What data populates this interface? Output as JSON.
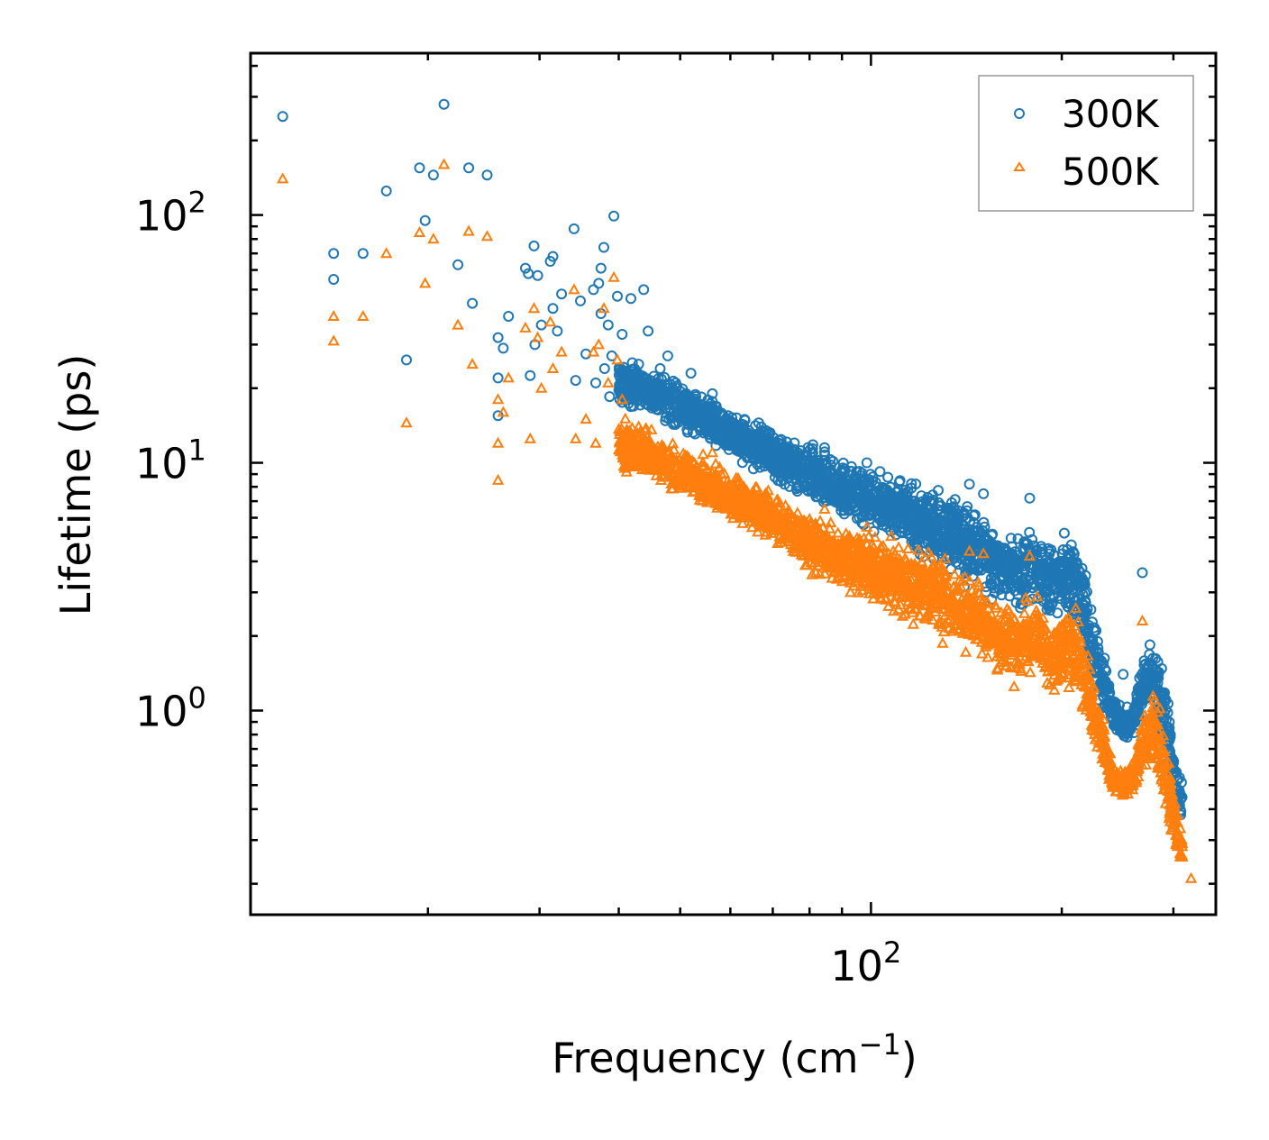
{
  "chart_data": {
    "type": "scatter",
    "xscale": "log",
    "yscale": "log",
    "xlim": [
      10.5,
      350
    ],
    "ylim": [
      0.15,
      450
    ],
    "xlabel": "Frequency (cm",
    "xlabel_exp": "−1",
    "xlabel_close": ")",
    "ylabel": "Lifetime (ps)",
    "x_ticks": [
      {
        "value": 100,
        "base": "10",
        "exp": "2"
      }
    ],
    "y_ticks": [
      {
        "value": 1,
        "base": "10",
        "exp": "0"
      },
      {
        "value": 10,
        "base": "10",
        "exp": "1"
      },
      {
        "value": 100,
        "base": "10",
        "exp": "2"
      }
    ],
    "legend": {
      "location": "upper right",
      "entries": [
        "300K",
        "500K"
      ]
    },
    "series": [
      {
        "name": "300K",
        "marker": "circle",
        "color": "#1f77b4",
        "points": [
          [
            11.8,
            250
          ],
          [
            14.2,
            70
          ],
          [
            14.2,
            55
          ],
          [
            15.8,
            70
          ],
          [
            17.2,
            125
          ],
          [
            18.5,
            26
          ],
          [
            19.4,
            155
          ],
          [
            19.8,
            95
          ],
          [
            20.4,
            145
          ],
          [
            21.2,
            280
          ],
          [
            22.3,
            63
          ],
          [
            23.2,
            155
          ],
          [
            23.5,
            44
          ],
          [
            24.8,
            145
          ],
          [
            25.8,
            32
          ],
          [
            25.8,
            22
          ],
          [
            25.8,
            15.5
          ],
          [
            26.3,
            29
          ],
          [
            26.8,
            39
          ],
          [
            28.5,
            61
          ],
          [
            28.8,
            58
          ],
          [
            29.0,
            22.5
          ],
          [
            29.4,
            75
          ],
          [
            29.5,
            30
          ],
          [
            29.8,
            57
          ],
          [
            30.2,
            36
          ],
          [
            31.2,
            65
          ],
          [
            31.5,
            68
          ],
          [
            31.5,
            42
          ],
          [
            32.0,
            34
          ],
          [
            32.5,
            48
          ],
          [
            34.0,
            88
          ],
          [
            34.2,
            21.5
          ],
          [
            34.8,
            45
          ],
          [
            35.5,
            27.5
          ],
          [
            36.5,
            50
          ],
          [
            36.8,
            21
          ],
          [
            37.2,
            53
          ],
          [
            37.5,
            61
          ],
          [
            37.5,
            40
          ],
          [
            37.9,
            74
          ],
          [
            38.0,
            24
          ],
          [
            38.5,
            36
          ],
          [
            38.7,
            18.5
          ],
          [
            39.0,
            27
          ],
          [
            39.3,
            99
          ],
          [
            39.8,
            47
          ],
          [
            40.5,
            33
          ],
          [
            41.8,
            46
          ],
          [
            43.8,
            50
          ],
          [
            42.5,
            20
          ],
          [
            43.0,
            25
          ],
          [
            44.5,
            34
          ],
          [
            45.2,
            18
          ],
          [
            46.5,
            24
          ],
          [
            47.8,
            27
          ],
          [
            49.2,
            21
          ],
          [
            50.5,
            16
          ],
          [
            52.0,
            23
          ],
          [
            54.0,
            17
          ],
          [
            56.2,
            19
          ],
          [
            59.5,
            15.5
          ],
          [
            63.0,
            14
          ],
          [
            66.5,
            14.5
          ],
          [
            73.5,
            11
          ],
          [
            79.5,
            9.5
          ],
          [
            84.5,
            11.5
          ],
          [
            98.5,
            10
          ],
          [
            110.5,
            7
          ],
          [
            118.0,
            6.2
          ],
          [
            126.5,
            4.5
          ],
          [
            143.0,
            8.2
          ],
          [
            150.5,
            7.5
          ],
          [
            178.0,
            7.2
          ],
          [
            204.0,
            3.6
          ],
          [
            268.0,
            3.6
          ],
          [
            250.0,
            1.4
          ]
        ],
        "band": [
          [
            40,
            28,
            16
          ],
          [
            50,
            22,
            13
          ],
          [
            60,
            17,
            10
          ],
          [
            70,
            14,
            8
          ],
          [
            80,
            12.5,
            6.5
          ],
          [
            90,
            11,
            5.5
          ],
          [
            100,
            10,
            5
          ],
          [
            110,
            9,
            4.5
          ],
          [
            120,
            8.5,
            4
          ],
          [
            130,
            8.5,
            3.5
          ],
          [
            140,
            7.5,
            3
          ],
          [
            150,
            6.5,
            2.8
          ],
          [
            160,
            6,
            2.5
          ],
          [
            170,
            5.5,
            2.3
          ],
          [
            180,
            5.8,
            2.5
          ],
          [
            190,
            5.2,
            2.2
          ],
          [
            200,
            5.8,
            2.3
          ],
          [
            210,
            6,
            2
          ],
          [
            215,
            4.5,
            1.8
          ],
          [
            220,
            3.5,
            1.4
          ],
          [
            230,
            2,
            1
          ],
          [
            240,
            1.2,
            0.85
          ],
          [
            250,
            1.05,
            0.72
          ],
          [
            260,
            1.1,
            0.78
          ],
          [
            270,
            1.9,
            0.95
          ],
          [
            280,
            2.3,
            0.85
          ],
          [
            290,
            1.4,
            0.6
          ],
          [
            300,
            0.8,
            0.4
          ],
          [
            310,
            0.55,
            0.3
          ]
        ]
      },
      {
        "name": "500K",
        "marker": "triangle",
        "color": "#ff7f0e",
        "points": [
          [
            11.8,
            140
          ],
          [
            14.2,
            39
          ],
          [
            14.2,
            31
          ],
          [
            15.8,
            39
          ],
          [
            17.2,
            70
          ],
          [
            18.5,
            14.5
          ],
          [
            19.4,
            85
          ],
          [
            19.8,
            53
          ],
          [
            20.4,
            80
          ],
          [
            21.2,
            160
          ],
          [
            22.3,
            36
          ],
          [
            23.2,
            86
          ],
          [
            23.5,
            25
          ],
          [
            24.8,
            82
          ],
          [
            25.8,
            18
          ],
          [
            25.8,
            12
          ],
          [
            25.8,
            8.5
          ],
          [
            26.3,
            16
          ],
          [
            26.8,
            22
          ],
          [
            28.5,
            35
          ],
          [
            29.0,
            12.5
          ],
          [
            29.4,
            42
          ],
          [
            29.8,
            32
          ],
          [
            30.2,
            20
          ],
          [
            31.2,
            37
          ],
          [
            31.5,
            24
          ],
          [
            32.5,
            28
          ],
          [
            34.0,
            50
          ],
          [
            34.2,
            12.5
          ],
          [
            35.5,
            15
          ],
          [
            36.5,
            28
          ],
          [
            36.8,
            12
          ],
          [
            37.2,
            30
          ],
          [
            37.9,
            42
          ],
          [
            38.5,
            21
          ],
          [
            39.3,
            56
          ],
          [
            39.8,
            26
          ],
          [
            40.5,
            18
          ],
          [
            43.0,
            14
          ],
          [
            45.2,
            10
          ],
          [
            50.5,
            9
          ],
          [
            56.2,
            11
          ],
          [
            63.0,
            8
          ],
          [
            73.5,
            6.2
          ],
          [
            84.5,
            6.5
          ],
          [
            98.5,
            5.5
          ],
          [
            110.5,
            3.9
          ],
          [
            118.0,
            3.3
          ],
          [
            126.5,
            2.5
          ],
          [
            143.0,
            4.4
          ],
          [
            150.5,
            4.3
          ],
          [
            178.0,
            4.2
          ],
          [
            204.0,
            2
          ],
          [
            228.0,
            0.78
          ],
          [
            268.0,
            2.3
          ],
          [
            250.0,
            0.53
          ],
          [
            320.0,
            0.21
          ]
        ],
        "band": [
          [
            40,
            16,
            9
          ],
          [
            50,
            12,
            7
          ],
          [
            60,
            9.5,
            5.5
          ],
          [
            70,
            8,
            4.5
          ],
          [
            80,
            6.5,
            3.5
          ],
          [
            90,
            6,
            3
          ],
          [
            100,
            5.5,
            2.6
          ],
          [
            110,
            5,
            2.3
          ],
          [
            120,
            5,
            2
          ],
          [
            130,
            4.5,
            1.8
          ],
          [
            140,
            4,
            1.6
          ],
          [
            150,
            3.5,
            1.5
          ],
          [
            160,
            3,
            1.3
          ],
          [
            170,
            2.8,
            1.2
          ],
          [
            180,
            3.2,
            1.3
          ],
          [
            190,
            2.6,
            1.1
          ],
          [
            200,
            2.8,
            1.1
          ],
          [
            210,
            3,
            1.05
          ],
          [
            215,
            2.4,
            0.9
          ],
          [
            220,
            1.8,
            0.75
          ],
          [
            230,
            1.1,
            0.6
          ],
          [
            240,
            0.65,
            0.46
          ],
          [
            250,
            0.6,
            0.42
          ],
          [
            260,
            0.62,
            0.45
          ],
          [
            270,
            1.1,
            0.55
          ],
          [
            280,
            1.4,
            0.52
          ],
          [
            290,
            0.9,
            0.38
          ],
          [
            300,
            0.5,
            0.27
          ],
          [
            310,
            0.33,
            0.22
          ]
        ]
      }
    ]
  }
}
